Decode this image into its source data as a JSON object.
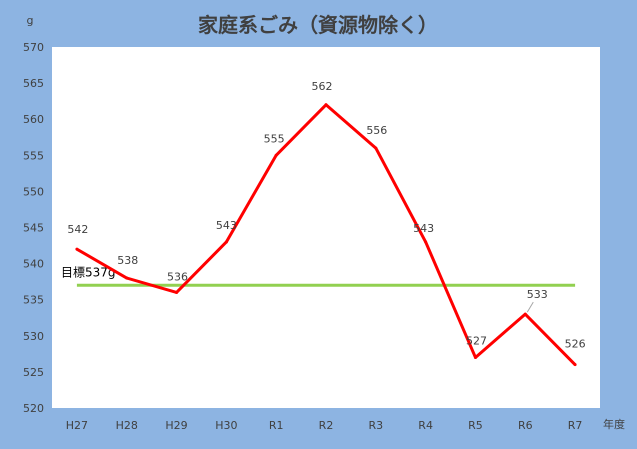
{
  "chart_data": {
    "type": "line",
    "title": "家庭系ごみ（資源物除く）",
    "ylabel": "g",
    "xlabel": "年度",
    "categories": [
      "H27",
      "H28",
      "H29",
      "H30",
      "R1",
      "R2",
      "R3",
      "R4",
      "R5",
      "R6",
      "R7"
    ],
    "series": [
      {
        "values": [
          542,
          538,
          536,
          543,
          555,
          562,
          556,
          543,
          527,
          533,
          526
        ],
        "color": "#ff0000"
      }
    ],
    "target": {
      "label": "目標537g",
      "value": 537,
      "color": "#92d050"
    },
    "ylim": [
      520,
      570
    ],
    "yticks": [
      520,
      525,
      530,
      535,
      540,
      545,
      550,
      555,
      560,
      565,
      570
    ],
    "grid": false,
    "legend": "none"
  }
}
